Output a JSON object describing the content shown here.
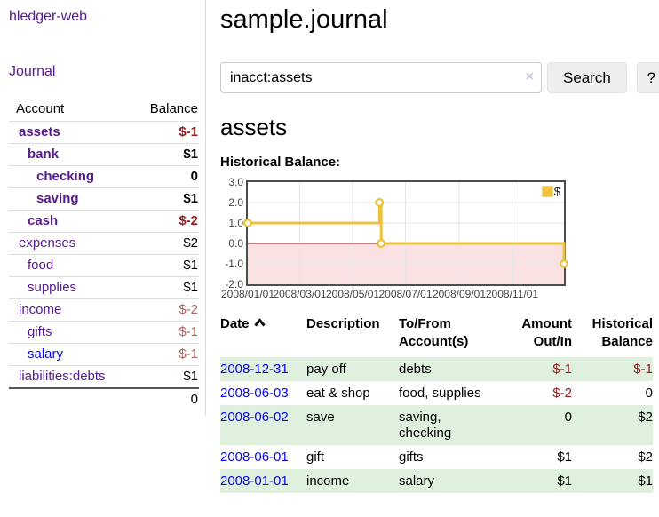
{
  "app": {
    "brand": "hledger-web",
    "nav": {
      "journal": "Journal"
    }
  },
  "colors": {
    "link_purple": "#551a8b",
    "link_blue": "#0909e8",
    "negative_strong": "#941b1b",
    "negative_muted": "#b25d5d",
    "row_stripe_green": "#dff0df"
  },
  "sidebar": {
    "table": {
      "col_account": "Account",
      "col_balance": "Balance"
    },
    "accounts": [
      {
        "name": "assets",
        "cls": "l1 b",
        "balance": "$-1",
        "balance_cls": "neg"
      },
      {
        "name": "bank",
        "cls": "l2 b",
        "balance": "$1",
        "balance_cls": ""
      },
      {
        "name": "checking",
        "cls": "l3 b",
        "balance": "0",
        "balance_cls": ""
      },
      {
        "name": "saving",
        "cls": "l3 b",
        "balance": "$1",
        "balance_cls": ""
      },
      {
        "name": "cash",
        "cls": "l2 b",
        "balance": "$-2",
        "balance_cls": "neg"
      },
      {
        "name": "expenses",
        "cls": "l1",
        "balance": "$2",
        "balance_cls": ""
      },
      {
        "name": "food",
        "cls": "l2",
        "balance": "$1",
        "balance_cls": ""
      },
      {
        "name": "supplies",
        "cls": "l2",
        "balance": "$1",
        "balance_cls": ""
      },
      {
        "name": "income",
        "cls": "l1",
        "balance": "$-2",
        "balance_cls": "negm"
      },
      {
        "name": "gifts",
        "cls": "l2",
        "balance": "$-1",
        "balance_cls": "negm"
      },
      {
        "name": "salary",
        "cls": "l2",
        "link_cls": "blue",
        "balance": "$-1",
        "balance_cls": "negm"
      },
      {
        "name": "liabilities:debts",
        "cls": "l1",
        "balance": "$1",
        "balance_cls": ""
      }
    ],
    "total": "0"
  },
  "main": {
    "title": "sample.journal",
    "search": {
      "value": "inacct:assets",
      "clear_icon": "×",
      "button": "Search",
      "help_button": "?"
    },
    "account_title": "assets",
    "chart_title": "Historical Balance:"
  },
  "chart_data": {
    "type": "line",
    "step": true,
    "title": "Historical Balance:",
    "series": [
      {
        "name": "$",
        "color": "#edc240",
        "points": [
          {
            "date": "2008-01-01",
            "value": 1.0
          },
          {
            "date": "2008-06-01",
            "value": 2.0
          },
          {
            "date": "2008-06-03",
            "value": 0.0
          },
          {
            "date": "2008-12-31",
            "value": -1.0
          }
        ]
      }
    ],
    "x_range": [
      "2008-01-01",
      "2008-12-31"
    ],
    "x_ticks": [
      "2008/01/01",
      "2008/03/01",
      "2008/05/01",
      "2008/07/01",
      "2008/09/01",
      "2008/11/01"
    ],
    "y_ticks": [
      "3.0",
      "2.0",
      "1.0",
      "0.0",
      "-1.0",
      "-2.0"
    ],
    "ylim": [
      -2,
      3
    ],
    "grid": true,
    "grid_color": "#e6e6e6",
    "negative_region_color": "#fbe2e2",
    "zero_line_color": "#9c1010",
    "legend_position": "top-right"
  },
  "register": {
    "header": {
      "date": "Date",
      "description": "Description",
      "accounts": "To/From Account(s)",
      "amount": "Amount Out/In",
      "balance": "Historical Balance"
    },
    "sort": "ascending-by-date-indicator",
    "rows": [
      {
        "date": "2008-12-31",
        "description": "pay off",
        "accounts": "debts",
        "amount": "$-1",
        "amount_cls": "neg",
        "balance": "$-1",
        "balance_cls": "neg"
      },
      {
        "date": "2008-06-03",
        "description": "eat & shop",
        "accounts": "food, supplies",
        "amount": "$-2",
        "amount_cls": "neg",
        "balance": "0",
        "balance_cls": ""
      },
      {
        "date": "2008-06-02",
        "description": "save",
        "accounts": "saving,\nchecking",
        "amount": "0",
        "amount_cls": "",
        "balance": "$2",
        "balance_cls": ""
      },
      {
        "date": "2008-06-01",
        "description": "gift",
        "accounts": "gifts",
        "amount": "$1",
        "amount_cls": "",
        "balance": "$2",
        "balance_cls": ""
      },
      {
        "date": "2008-01-01",
        "description": "income",
        "accounts": "salary",
        "amount": "$1",
        "amount_cls": "",
        "balance": "$1",
        "balance_cls": ""
      }
    ]
  }
}
